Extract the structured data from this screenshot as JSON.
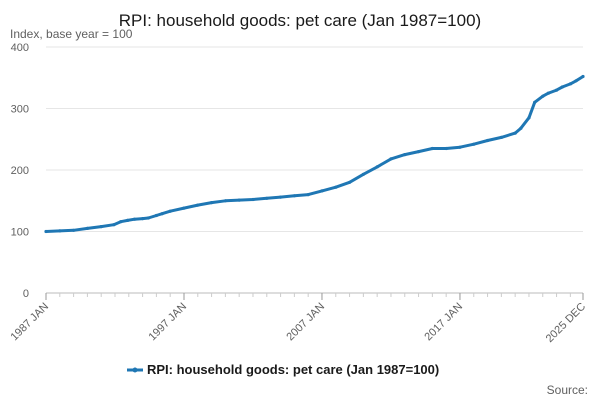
{
  "chart_data": {
    "type": "line",
    "title": "RPI: household goods: pet care (Jan 1987=100)",
    "subtitle": "Index, base year = 100",
    "xlabel": "",
    "ylabel": "",
    "ylim": [
      0,
      400
    ],
    "yticks": [
      "0",
      "100",
      "200",
      "300",
      "400"
    ],
    "xlim": [
      "1987-01",
      "2025-12"
    ],
    "xticks": [
      {
        "label": "1987 JAN",
        "date": "1987-01"
      },
      {
        "label": "1997 JAN",
        "date": "1997-01"
      },
      {
        "label": "2007 JAN",
        "date": "2007-01"
      },
      {
        "label": "2017 JAN",
        "date": "2017-01"
      },
      {
        "label": "2025 DEC",
        "date": "2025-12"
      }
    ],
    "grid": true,
    "legend_position": "bottom",
    "series": [
      {
        "name": "RPI: household goods: pet care (Jan 1987=100)",
        "color": "#1f77b4",
        "points": [
          [
            "1987-01",
            100
          ],
          [
            "1988-01",
            101
          ],
          [
            "1989-01",
            102
          ],
          [
            "1990-01",
            105
          ],
          [
            "1991-01",
            108
          ],
          [
            "1991-12",
            111
          ],
          [
            "1992-06",
            116
          ],
          [
            "1992-12",
            118
          ],
          [
            "1993-06",
            120
          ],
          [
            "1994-01",
            121
          ],
          [
            "1994-06",
            122
          ],
          [
            "1995-01",
            126
          ],
          [
            "1995-06",
            129
          ],
          [
            "1996-01",
            133
          ],
          [
            "1997-01",
            138
          ],
          [
            "1998-01",
            143
          ],
          [
            "1999-01",
            147
          ],
          [
            "2000-01",
            150
          ],
          [
            "2001-01",
            151
          ],
          [
            "2002-01",
            152
          ],
          [
            "2003-01",
            154
          ],
          [
            "2004-01",
            156
          ],
          [
            "2005-01",
            158
          ],
          [
            "2006-01",
            160
          ],
          [
            "2007-01",
            166
          ],
          [
            "2008-01",
            172
          ],
          [
            "2009-01",
            180
          ],
          [
            "2010-01",
            193
          ],
          [
            "2011-01",
            205
          ],
          [
            "2012-01",
            218
          ],
          [
            "2013-01",
            225
          ],
          [
            "2014-01",
            230
          ],
          [
            "2015-01",
            235
          ],
          [
            "2016-01",
            235
          ],
          [
            "2017-01",
            237
          ],
          [
            "2018-01",
            242
          ],
          [
            "2019-01",
            248
          ],
          [
            "2020-01",
            253
          ],
          [
            "2021-01",
            260
          ],
          [
            "2021-06",
            268
          ],
          [
            "2022-01",
            285
          ],
          [
            "2022-06",
            310
          ],
          [
            "2023-01",
            320
          ],
          [
            "2023-06",
            325
          ],
          [
            "2024-01",
            330
          ],
          [
            "2024-06",
            335
          ],
          [
            "2025-01",
            340
          ],
          [
            "2025-06",
            345
          ],
          [
            "2025-12",
            352
          ]
        ]
      }
    ],
    "source_label": "Source:"
  }
}
